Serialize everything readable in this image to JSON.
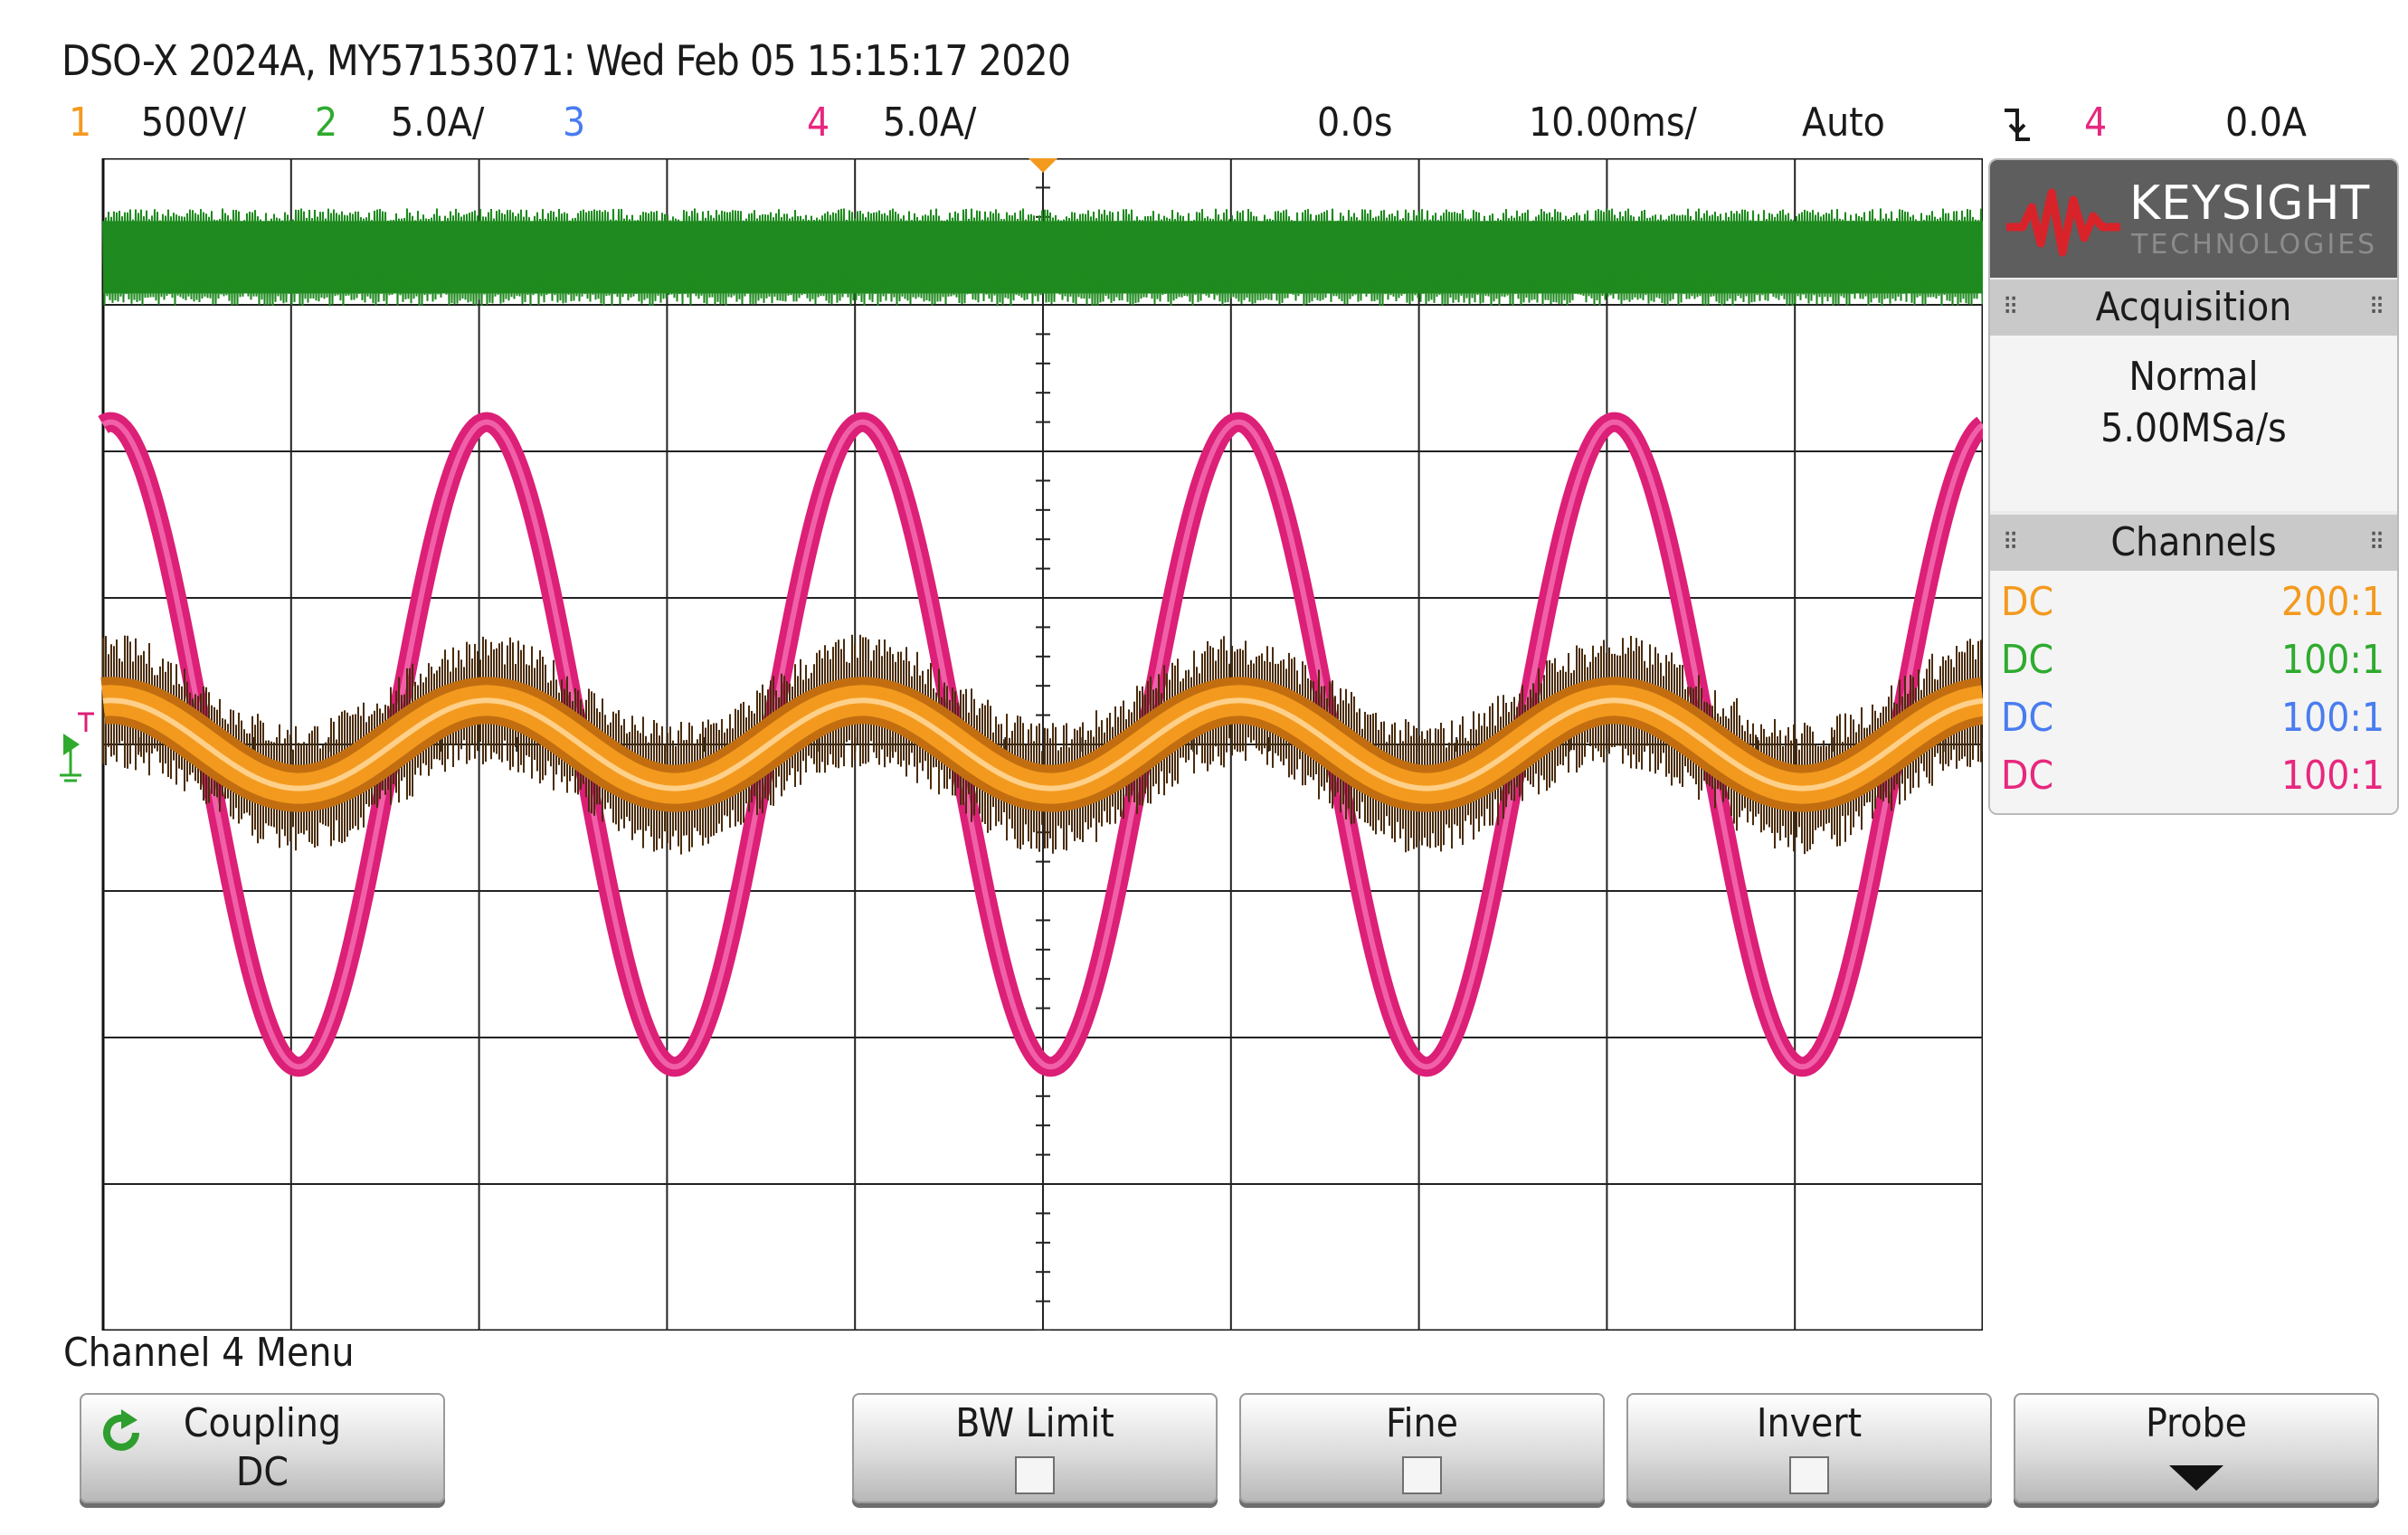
{
  "header": {
    "title": "DSO-X 2024A, MY57153071: Wed Feb 05 15:15:17 2020",
    "channels": [
      {
        "num": "1",
        "scale": "500V/",
        "color": "#f39a1e"
      },
      {
        "num": "2",
        "scale": "5.0A/",
        "color": "#2eab2e"
      },
      {
        "num": "3",
        "scale": "",
        "color": "#4a7cf0"
      },
      {
        "num": "4",
        "scale": "5.0A/",
        "color": "#e8277e"
      }
    ],
    "time_delay": "0.0s",
    "timebase": "10.00ms/",
    "trigger_mode": "Auto",
    "trigger_slope_icon": "falling-edge-icon",
    "trigger_source": "4",
    "trigger_level": "0.0A"
  },
  "scope": {
    "grid": {
      "h_divisions": 10,
      "v_divisions": 8
    },
    "waveforms": [
      {
        "name": "channel-2-trace",
        "color": "#1f8a1f",
        "shape": "noise band",
        "level_div": 3.3
      },
      {
        "name": "channel-4-trace",
        "color": "#dc1f77",
        "shape": "sine",
        "offset_div": 0,
        "amplitude_div": 2.2,
        "period_div": 2
      },
      {
        "name": "channel-1-trace",
        "color": "#f39a1e",
        "shape": "sine",
        "offset_div": 0,
        "amplitude_div": 0.3,
        "period_div": 2
      }
    ],
    "ground_marker_color": "#2eab2e",
    "trigger_marker_color": "#f39a1e"
  },
  "panel": {
    "logo": {
      "brand": "KEYSIGHT",
      "sub": "TECHNOLOGIES",
      "wave_color": "#d8232a"
    },
    "acquisition": {
      "title": "Acquisition",
      "mode": "Normal",
      "rate": "5.00MSa/s"
    },
    "channels": {
      "title": "Channels",
      "rows": [
        {
          "coupling": "DC",
          "probe": "200:1",
          "color": "#f39a1e"
        },
        {
          "coupling": "DC",
          "probe": "100:1",
          "color": "#2eab2e"
        },
        {
          "coupling": "DC",
          "probe": "100:1",
          "color": "#4a7cf0"
        },
        {
          "coupling": "DC",
          "probe": "100:1",
          "color": "#e8277e"
        }
      ]
    }
  },
  "menu": {
    "title": "Channel 4 Menu",
    "coupling": {
      "label": "Coupling",
      "value": "DC",
      "icon": "cycle-icon"
    },
    "bw_limit": {
      "label": "BW Limit"
    },
    "fine": {
      "label": "Fine"
    },
    "invert": {
      "label": "Invert"
    },
    "probe": {
      "label": "Probe",
      "icon": "down-arrow-icon"
    }
  }
}
